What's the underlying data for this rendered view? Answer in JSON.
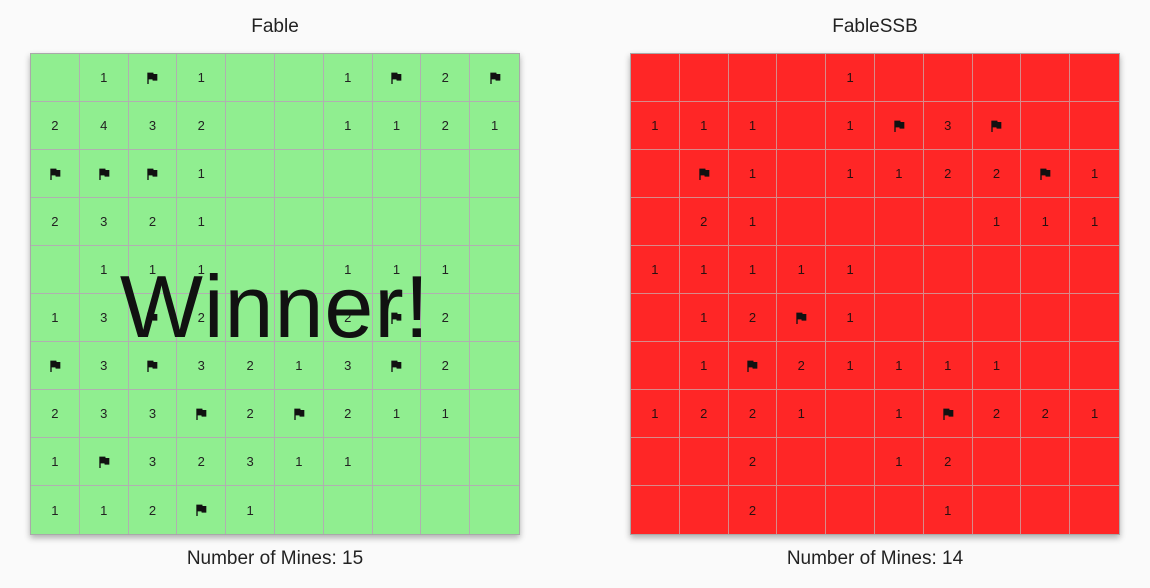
{
  "boards": [
    {
      "title": "Fable",
      "mines_label": "Number of Mines: 15",
      "overlay": "Winner!",
      "background": "#90ee90",
      "cells": [
        [
          "",
          "1",
          "F",
          "1",
          "",
          "",
          "1",
          "F",
          "2",
          "F"
        ],
        [
          "2",
          "4",
          "3",
          "2",
          "",
          "",
          "1",
          "1",
          "2",
          "1"
        ],
        [
          "F",
          "F",
          "F",
          "1",
          "",
          "",
          "",
          "",
          "",
          ""
        ],
        [
          "2",
          "3",
          "2",
          "1",
          "",
          "",
          "",
          "",
          "",
          ""
        ],
        [
          "",
          "1",
          "1",
          "1",
          "",
          "",
          "1",
          "1",
          "1",
          ""
        ],
        [
          "1",
          "3",
          "F",
          "2",
          "",
          "",
          "2",
          "F",
          "2",
          ""
        ],
        [
          "F",
          "3",
          "F",
          "3",
          "2",
          "1",
          "3",
          "F",
          "2",
          ""
        ],
        [
          "2",
          "3",
          "3",
          "F",
          "2",
          "F",
          "2",
          "1",
          "1",
          ""
        ],
        [
          "1",
          "F",
          "3",
          "2",
          "3",
          "1",
          "1",
          "",
          "",
          ""
        ],
        [
          "1",
          "1",
          "2",
          "F",
          "1",
          "",
          "",
          "",
          "",
          ""
        ]
      ]
    },
    {
      "title": "FableSSB",
      "mines_label": "Number of Mines: 14",
      "overlay": "",
      "background": "#ff2626",
      "cells": [
        [
          "",
          "",
          "",
          "",
          "1",
          "",
          "",
          "",
          "",
          ""
        ],
        [
          "1",
          "1",
          "1",
          "",
          "1",
          "F",
          "3",
          "F",
          "",
          ""
        ],
        [
          "",
          "F",
          "1",
          "",
          "1",
          "1",
          "2",
          "2",
          "F",
          "1"
        ],
        [
          "",
          "2",
          "1",
          "",
          "",
          "",
          "",
          "1",
          "1",
          "1"
        ],
        [
          "1",
          "1",
          "1",
          "1",
          "1",
          "",
          "",
          "",
          "",
          ""
        ],
        [
          "",
          "1",
          "2",
          "F",
          "1",
          "",
          "",
          "",
          "",
          ""
        ],
        [
          "",
          "1",
          "F",
          "2",
          "1",
          "1",
          "1",
          "1",
          "",
          ""
        ],
        [
          "1",
          "2",
          "2",
          "1",
          "",
          "1",
          "F",
          "2",
          "2",
          "1"
        ],
        [
          "",
          "",
          "2",
          "",
          "",
          "1",
          "2",
          "",
          "",
          ""
        ],
        [
          "",
          "",
          "2",
          "",
          "",
          "",
          "1",
          "",
          "",
          ""
        ]
      ]
    }
  ],
  "icons": {
    "flag": "flag-icon"
  }
}
